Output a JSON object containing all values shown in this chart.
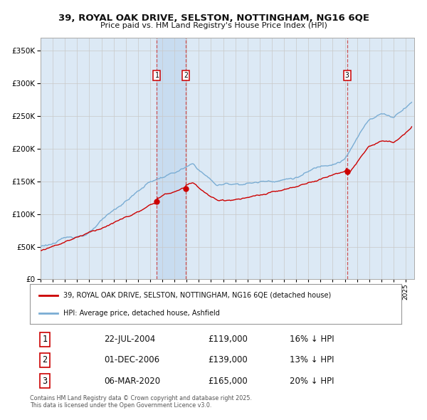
{
  "title_line1": "39, ROYAL OAK DRIVE, SELSTON, NOTTINGHAM, NG16 6QE",
  "title_line2": "Price paid vs. HM Land Registry's House Price Index (HPI)",
  "legend_red": "39, ROYAL OAK DRIVE, SELSTON, NOTTINGHAM, NG16 6QE (detached house)",
  "legend_blue": "HPI: Average price, detached house, Ashfield",
  "footer": "Contains HM Land Registry data © Crown copyright and database right 2025.\nThis data is licensed under the Open Government Licence v3.0.",
  "transactions": [
    {
      "num": 1,
      "date": "22-JUL-2004",
      "price": 119000,
      "hpi_pct": "16% ↓ HPI"
    },
    {
      "num": 2,
      "date": "01-DEC-2006",
      "price": 139000,
      "hpi_pct": "13% ↓ HPI"
    },
    {
      "num": 3,
      "date": "06-MAR-2020",
      "price": 165000,
      "hpi_pct": "20% ↓ HPI"
    }
  ],
  "t1": 2004.55,
  "t2": 2006.92,
  "t3": 2020.18,
  "ylim": [
    0,
    370000
  ],
  "yticks": [
    0,
    50000,
    100000,
    150000,
    200000,
    250000,
    300000,
    350000
  ],
  "xlim_start": 1995.0,
  "xlim_end": 2025.7,
  "bg_color": "#dce9f5",
  "fig_bg_color": "#ffffff",
  "red_color": "#cc0000",
  "blue_color": "#7aadd4",
  "grid_color": "#c8c8c8",
  "shade_color": "#c8dcf0"
}
